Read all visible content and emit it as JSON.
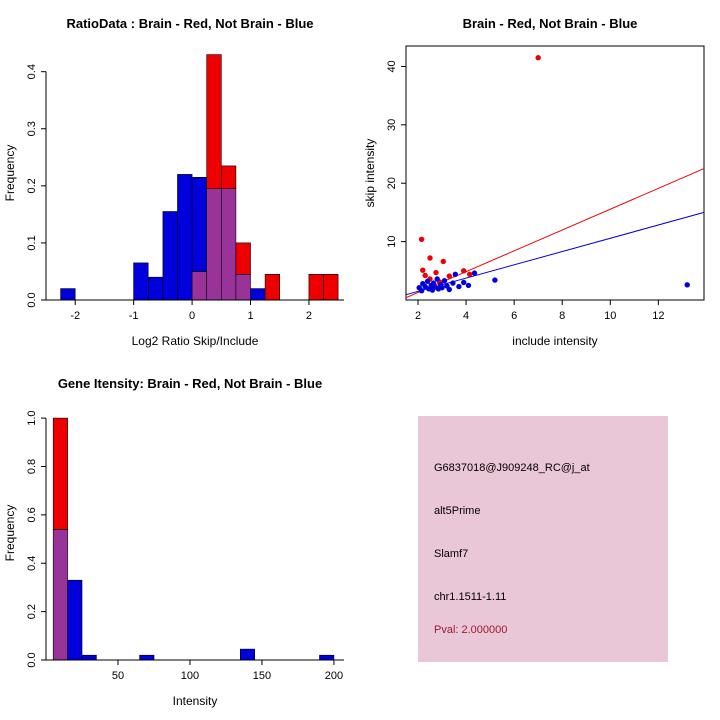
{
  "chart_data": [
    {
      "type": "bar",
      "subtype": "overlaid-histogram",
      "title": "RatioData : Brain - Red, Not Brain - Blue",
      "xlabel": "Log2 Ratio Skip/Include",
      "ylabel": "Frequency",
      "xlim": [
        -2.5,
        2.6
      ],
      "ylim": [
        0,
        0.445
      ],
      "xticks": [
        -2,
        -1,
        0,
        1,
        2
      ],
      "xticklabels": [
        "-2",
        "-1",
        "0",
        "1",
        "2"
      ],
      "yticks": [
        0.0,
        0.1,
        0.2,
        0.3,
        0.4
      ],
      "yticklabels": [
        "0.0",
        "0.1",
        "0.2",
        "0.3",
        "0.4"
      ],
      "bin_width": 0.25,
      "legend_note": "red = Brain, blue = Not Brain, purple = overlap",
      "bins": [
        {
          "x0": -2.25,
          "red": 0,
          "blue": 0.02
        },
        {
          "x0": -1.0,
          "red": 0,
          "blue": 0.065
        },
        {
          "x0": -0.75,
          "red": 0,
          "blue": 0.04
        },
        {
          "x0": -0.5,
          "red": 0,
          "blue": 0.155
        },
        {
          "x0": -0.25,
          "red": 0,
          "blue": 0.22
        },
        {
          "x0": 0.0,
          "red": 0.05,
          "blue": 0.215
        },
        {
          "x0": 0.25,
          "red": 0.43,
          "blue": 0.195
        },
        {
          "x0": 0.5,
          "red": 0.235,
          "blue": 0.195
        },
        {
          "x0": 0.75,
          "red": 0.1,
          "blue": 0.045
        },
        {
          "x0": 1.0,
          "red": 0,
          "blue": 0.02
        },
        {
          "x0": 1.25,
          "red": 0.045,
          "blue": 0
        },
        {
          "x0": 2.0,
          "red": 0.045,
          "blue": 0
        },
        {
          "x0": 2.25,
          "red": 0.045,
          "blue": 0
        }
      ],
      "colors": {
        "red": "#ee0000",
        "blue": "#0000dd",
        "overlap": "#993399"
      }
    },
    {
      "type": "scatter",
      "title": "Brain - Red, Not Brain - Blue",
      "xlabel": "include intensity",
      "ylabel": "skip intensity",
      "xlim": [
        1.5,
        13.9
      ],
      "ylim": [
        0,
        43.5
      ],
      "xticks": [
        2,
        4,
        6,
        8,
        10,
        12
      ],
      "xticklabels": [
        "2",
        "4",
        "6",
        "8",
        "10",
        "12"
      ],
      "yticks": [
        10,
        20,
        30,
        40
      ],
      "yticklabels": [
        "10",
        "20",
        "30",
        "40"
      ],
      "series": [
        {
          "name": "brain-red",
          "color": "#ee0000",
          "points": [
            [
              7.0,
              41.5
            ],
            [
              2.15,
              10.4
            ],
            [
              2.5,
              7.2
            ],
            [
              3.05,
              6.6
            ],
            [
              2.2,
              5.1
            ],
            [
              2.75,
              4.7
            ],
            [
              3.9,
              5.0
            ],
            [
              3.3,
              4.1
            ],
            [
              2.5,
              3.6
            ],
            [
              4.15,
              4.4
            ],
            [
              2.9,
              3.1
            ],
            [
              2.3,
              4.2
            ]
          ],
          "fit_line": {
            "x": [
              1.5,
              13.9
            ],
            "y": [
              0.4,
              22.5
            ]
          }
        },
        {
          "name": "not-brain-blue",
          "color": "#0000dd",
          "points": [
            [
              2.05,
              2.1
            ],
            [
              2.15,
              1.6
            ],
            [
              2.2,
              2.8
            ],
            [
              2.3,
              2.3
            ],
            [
              2.4,
              3.2
            ],
            [
              2.45,
              1.9
            ],
            [
              2.55,
              2.5
            ],
            [
              2.6,
              1.7
            ],
            [
              2.65,
              2.9
            ],
            [
              2.7,
              2.2
            ],
            [
              2.8,
              3.6
            ],
            [
              2.85,
              1.9
            ],
            [
              2.95,
              2.6
            ],
            [
              3.0,
              2.1
            ],
            [
              3.1,
              3.3
            ],
            [
              3.2,
              2.4
            ],
            [
              3.3,
              1.8
            ],
            [
              3.45,
              2.9
            ],
            [
              3.55,
              4.4
            ],
            [
              3.7,
              2.3
            ],
            [
              3.9,
              3.0
            ],
            [
              4.1,
              2.5
            ],
            [
              4.35,
              4.6
            ],
            [
              5.2,
              3.4
            ],
            [
              13.2,
              2.6
            ]
          ],
          "fit_line": {
            "x": [
              1.5,
              13.9
            ],
            "y": [
              0.9,
              15.0
            ]
          }
        }
      ]
    },
    {
      "type": "bar",
      "subtype": "overlaid-histogram",
      "title": "Gene Itensity: Brain - Red, Not Brain - Blue",
      "xlabel": "Intensity",
      "ylabel": "Frequency",
      "xlim": [
        0,
        207
      ],
      "ylim": [
        0,
        1.05
      ],
      "xticks": [
        50,
        100,
        150,
        200
      ],
      "xticklabels": [
        "50",
        "100",
        "150",
        "200"
      ],
      "yticks": [
        0.0,
        0.2,
        0.4,
        0.6,
        0.8,
        1.0
      ],
      "yticklabels": [
        "0.0",
        "0.2",
        "0.4",
        "0.6",
        "0.8",
        "1.0"
      ],
      "legend_note": "red = Brain, blue = Not Brain, purple = overlap",
      "bins": [
        {
          "x0": 5,
          "x1": 15,
          "red": 1.0,
          "blue": 0.54
        },
        {
          "x0": 15,
          "x1": 25,
          "red": 0,
          "blue": 0.33
        },
        {
          "x0": 25,
          "x1": 35,
          "red": 0,
          "blue": 0.02
        },
        {
          "x0": 65,
          "x1": 75,
          "red": 0,
          "blue": 0.02
        },
        {
          "x0": 135,
          "x1": 145,
          "red": 0,
          "blue": 0.045
        },
        {
          "x0": 190,
          "x1": 200,
          "red": 0,
          "blue": 0.02
        }
      ],
      "colors": {
        "red": "#ee0000",
        "blue": "#0000dd",
        "overlap": "#993399"
      }
    }
  ],
  "info_panel": {
    "background": "#e9c7d7",
    "lines": [
      {
        "text": "G6837018@J909248_RC@j_at",
        "color": "#000000"
      },
      {
        "text": "alt5Prime",
        "color": "#000000"
      },
      {
        "text": "Slamf7",
        "color": "#000000"
      },
      {
        "text": "chr1.1511-1.11",
        "color": "#000000"
      },
      {
        "text": "Pval: 2.000000",
        "color": "#9e1b32"
      }
    ]
  }
}
